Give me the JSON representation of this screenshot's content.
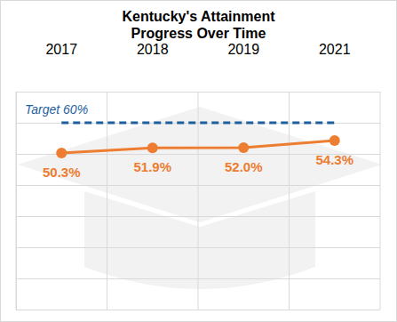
{
  "chart_data": {
    "type": "line",
    "title": "Kentucky's Attainment\nProgress Over Time",
    "categories": [
      "2017",
      "2018",
      "2019",
      "2021"
    ],
    "values": [
      50.3,
      51.9,
      52.0,
      54.3
    ],
    "value_labels": [
      "50.3%",
      "51.9%",
      "52.0%",
      "54.3%"
    ],
    "color": "#ed7d31",
    "marker": "circle",
    "data_labels": true,
    "ylim": [
      0,
      70
    ],
    "yticks": [
      0,
      10,
      20,
      30,
      40,
      50,
      60,
      70
    ],
    "grid": true,
    "tick_labels": "x",
    "target": {
      "label": "Target 60%",
      "value": 60,
      "color": "#1f5f9e",
      "line_style": "dashed"
    }
  }
}
